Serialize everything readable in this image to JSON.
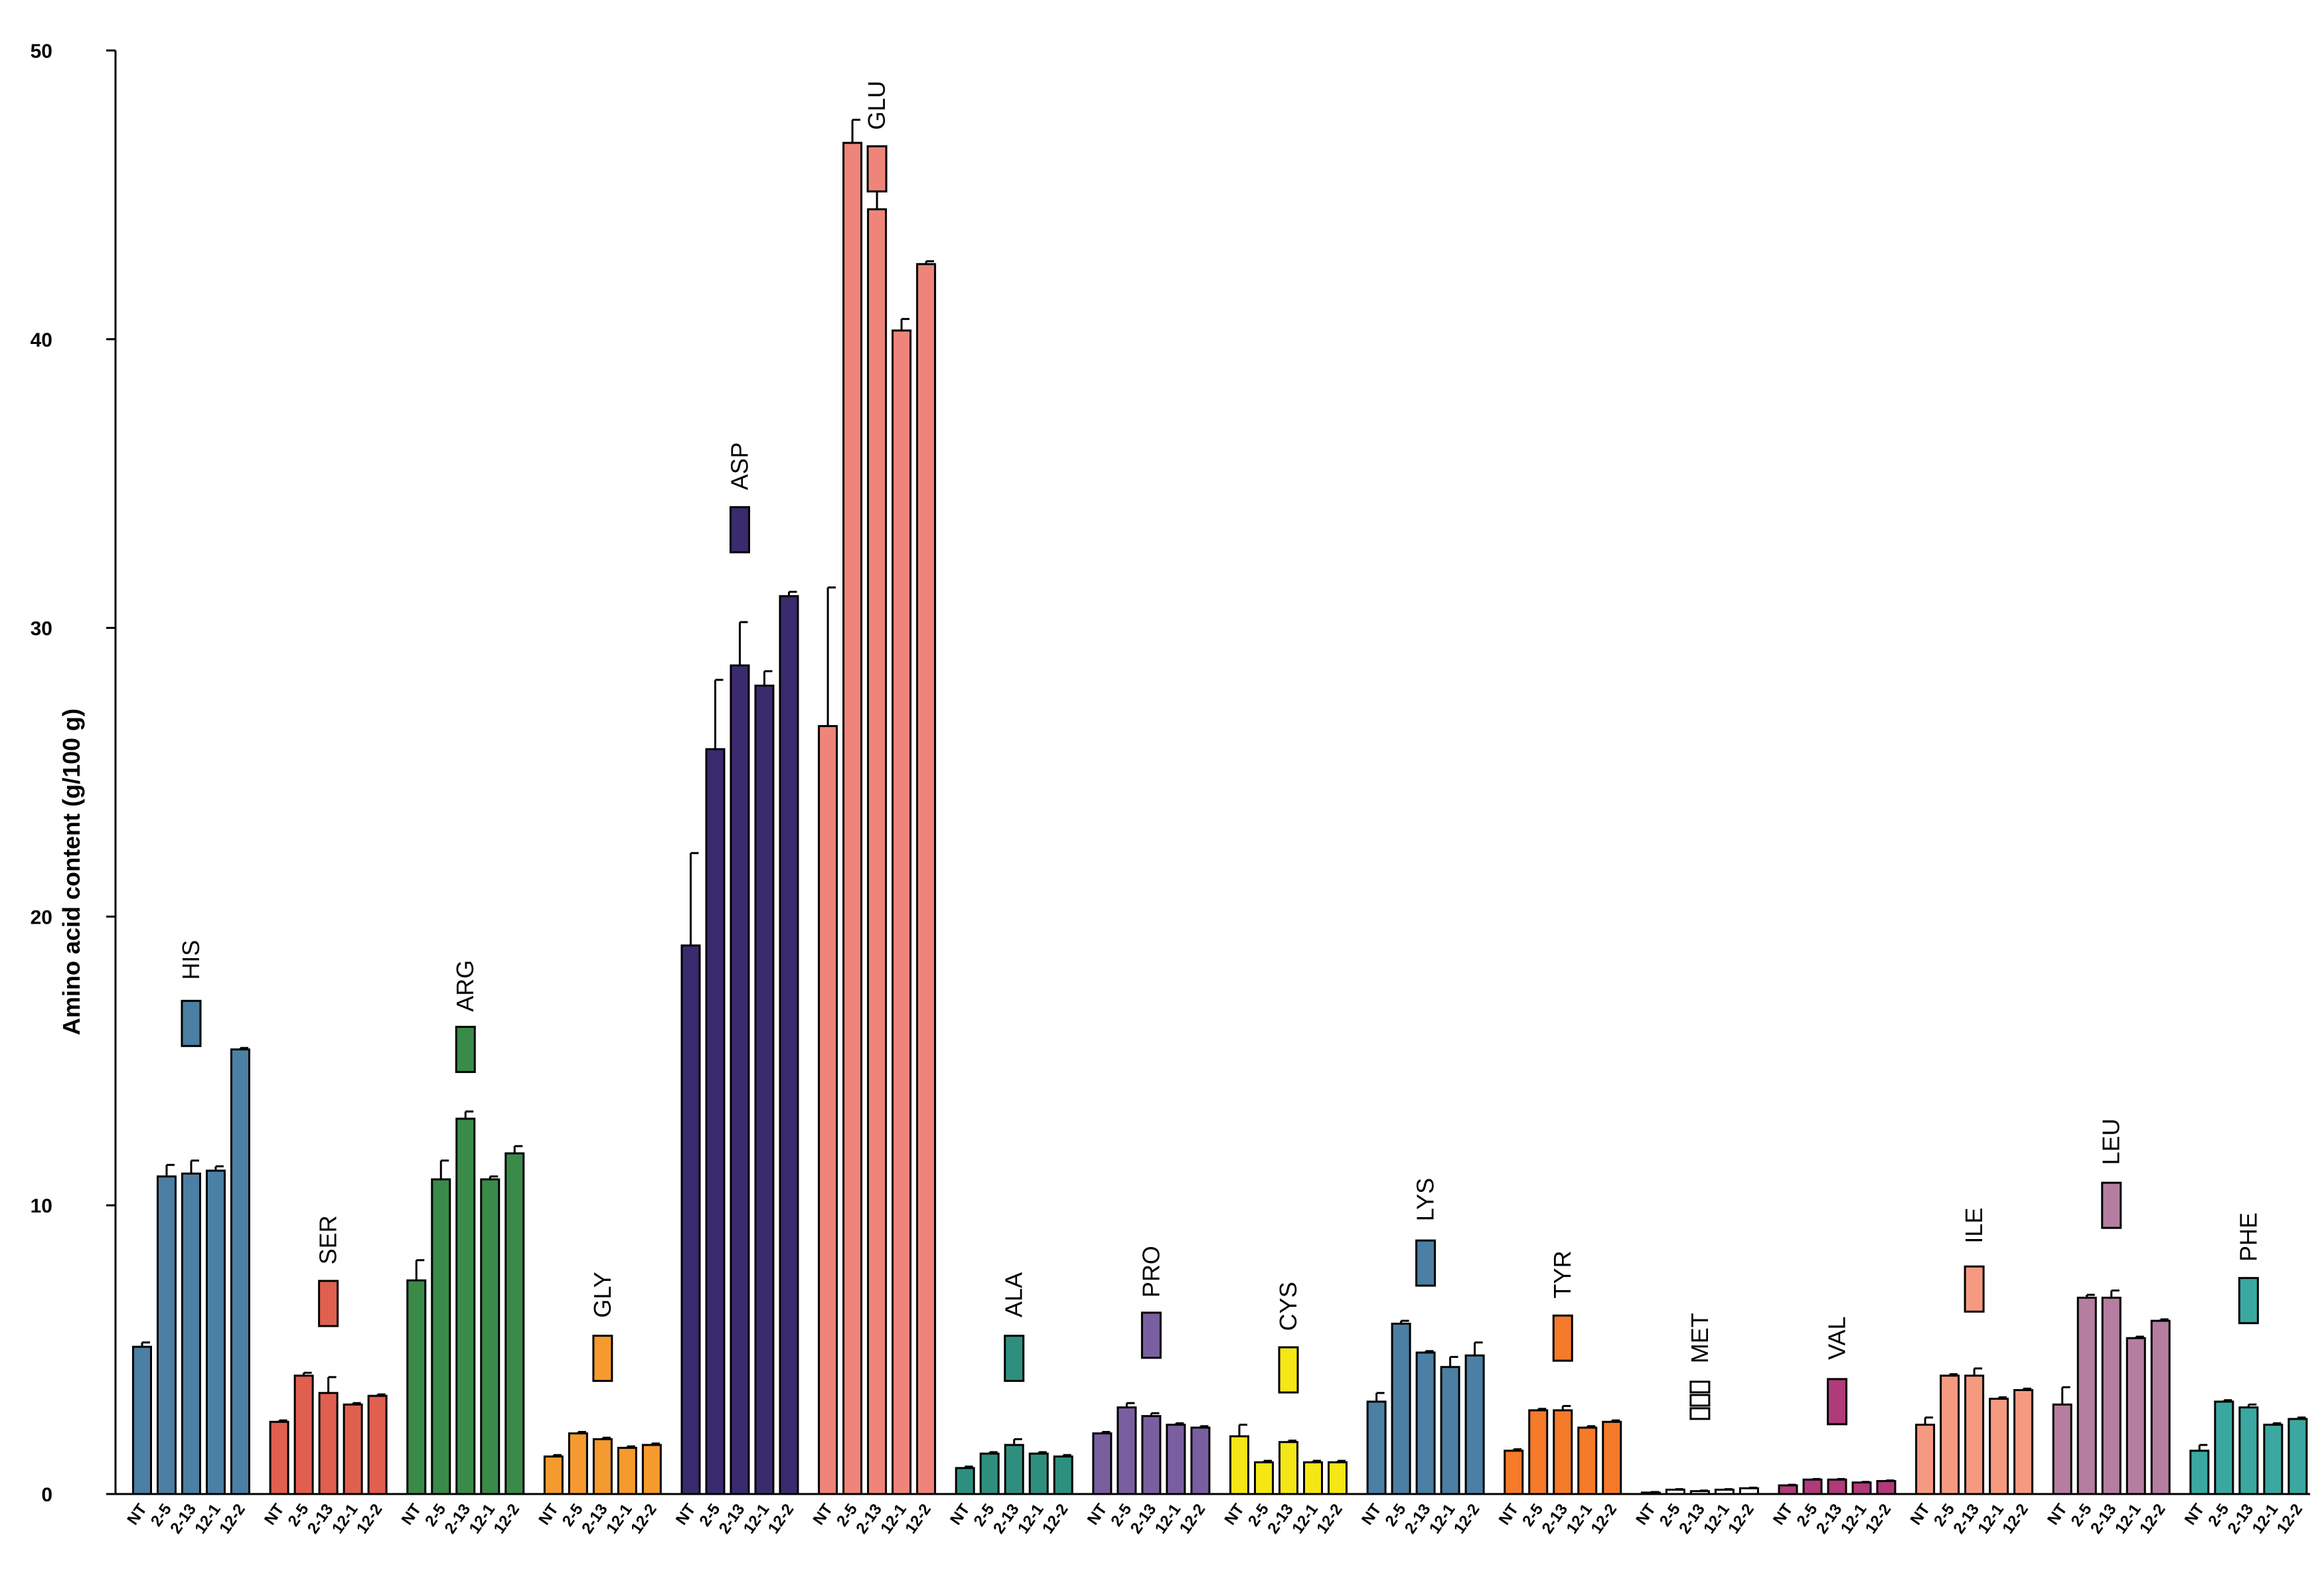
{
  "chart_data": {
    "type": "bar",
    "ylabel": "Amino acid content  (g/100 g)",
    "ylim": [
      0,
      50
    ],
    "yticks": [
      0,
      10,
      20,
      30,
      40,
      50
    ],
    "samples": [
      "NT",
      "2-5",
      "2-13",
      "12-1",
      "12-2"
    ],
    "groups": [
      {
        "name": "HIS",
        "color": "#4b7fa3",
        "values": [
          5.1,
          11.0,
          11.1,
          11.2,
          15.4
        ],
        "errors": [
          0.15,
          0.4,
          0.45,
          0.15,
          0.05
        ]
      },
      {
        "name": "SER",
        "color": "#e15f4f",
        "values": [
          2.5,
          4.1,
          3.5,
          3.1,
          3.4
        ],
        "errors": [
          0.05,
          0.1,
          0.55,
          0.05,
          0.05
        ]
      },
      {
        "name": "ARG",
        "color": "#3a8a4a",
        "values": [
          7.4,
          10.9,
          13.0,
          10.9,
          11.8
        ],
        "errors": [
          0.7,
          0.65,
          0.25,
          0.1,
          0.25
        ]
      },
      {
        "name": "GLY",
        "color": "#f59a2f",
        "values": [
          1.3,
          2.1,
          1.9,
          1.6,
          1.7
        ],
        "errors": [
          0.05,
          0.05,
          0.05,
          0.05,
          0.05
        ]
      },
      {
        "name": "ASP",
        "color": "#3a2a6e",
        "values": [
          19.0,
          25.8,
          28.7,
          28.0,
          31.1
        ],
        "errors": [
          3.2,
          2.4,
          1.5,
          0.5,
          0.15
        ]
      },
      {
        "name": "GLU",
        "color": "#ef857a",
        "values": [
          26.6,
          46.8,
          44.5,
          40.3,
          42.6
        ],
        "errors": [
          4.8,
          0.8,
          1.7,
          0.4,
          0.1
        ]
      },
      {
        "name": "ALA",
        "color": "#2f8f7f",
        "values": [
          0.9,
          1.4,
          1.7,
          1.4,
          1.3
        ],
        "errors": [
          0.05,
          0.05,
          0.2,
          0.05,
          0.05
        ]
      },
      {
        "name": "PRO",
        "color": "#7a5fa0",
        "values": [
          2.1,
          3.0,
          2.7,
          2.4,
          2.3
        ],
        "errors": [
          0.05,
          0.15,
          0.1,
          0.05,
          0.05
        ]
      },
      {
        "name": "CYS",
        "color": "#f5e616",
        "values": [
          2.0,
          1.1,
          1.8,
          1.1,
          1.1
        ],
        "errors": [
          0.4,
          0.05,
          0.05,
          0.05,
          0.05
        ]
      },
      {
        "name": "LYS",
        "color": "#4b7fa3",
        "values": [
          3.2,
          5.9,
          4.9,
          4.4,
          4.8
        ],
        "errors": [
          0.3,
          0.1,
          0.05,
          0.35,
          0.45
        ]
      },
      {
        "name": "TYR",
        "color": "#f57a2a",
        "values": [
          1.5,
          2.9,
          2.9,
          2.3,
          2.5
        ],
        "errors": [
          0.05,
          0.05,
          0.15,
          0.05,
          0.05
        ]
      },
      {
        "name": "MET",
        "color": "#ffffff",
        "values": [
          0.05,
          0.15,
          0.1,
          0.15,
          0.2
        ],
        "errors": [
          0.02,
          0.02,
          0.02,
          0.02,
          0.02
        ]
      },
      {
        "name": "VAL",
        "color": "#b03a7a",
        "values": [
          0.3,
          0.5,
          0.5,
          0.4,
          0.45
        ],
        "errors": [
          0.02,
          0.02,
          0.02,
          0.02,
          0.02
        ]
      },
      {
        "name": "ILE",
        "color": "#f59a80",
        "values": [
          2.4,
          4.1,
          4.1,
          3.3,
          3.6
        ],
        "errors": [
          0.25,
          0.05,
          0.25,
          0.05,
          0.05
        ]
      },
      {
        "name": "LEU",
        "color": "#b57ea0",
        "values": [
          3.1,
          6.8,
          6.8,
          5.4,
          6.0
        ],
        "errors": [
          0.6,
          0.1,
          0.25,
          0.05,
          0.05
        ]
      },
      {
        "name": "PHE",
        "color": "#3aa8a0",
        "values": [
          1.5,
          3.2,
          3.0,
          2.4,
          2.6
        ],
        "errors": [
          0.2,
          0.05,
          0.1,
          0.05,
          0.05
        ]
      }
    ],
    "legend_markers": [
      16.3,
      6.6,
      15.4,
      4.7,
      33.4,
      45.9,
      4.7,
      5.5,
      4.3,
      8.0,
      5.4,
      3.2,
      3.2,
      7.1,
      10.0,
      6.7
    ],
    "label_positions": [
      18.5,
      8.8,
      17.6,
      6.9,
      35.6,
      48.1,
      6.9,
      7.7,
      6.5,
      10.2,
      7.6,
      5.4,
      5.4,
      9.3,
      12.2,
      8.9
    ],
    "grid": false
  }
}
